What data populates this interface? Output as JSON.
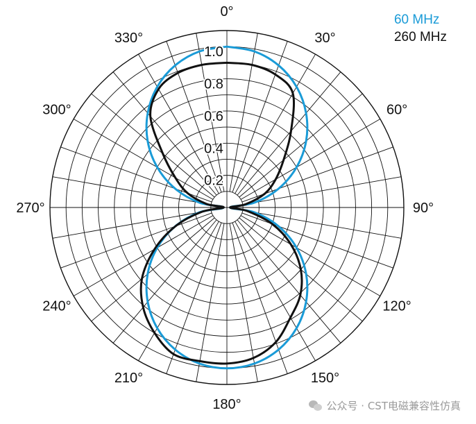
{
  "chart_data": {
    "type": "polar-line",
    "angular_unit": "degrees",
    "angular_direction": "clockwise",
    "zero_at": "top",
    "angle_labels": [
      "0°",
      "30°",
      "60°",
      "90°",
      "120°",
      "150°",
      "180°",
      "210°",
      "240°",
      "270°",
      "300°",
      "330°"
    ],
    "radial_ticks": [
      "0.2",
      "0.4",
      "0.6",
      "0.8",
      "1.0"
    ],
    "radial_range": [
      0,
      1.1
    ],
    "radial_grid_step": 0.1,
    "angular_grid_step_deg": 10,
    "legend_position": "top-right",
    "series": [
      {
        "name": "60 MHz",
        "color": "#1a9bd7",
        "points": [
          [
            0,
            1.0
          ],
          [
            10,
            0.985
          ],
          [
            20,
            0.94
          ],
          [
            30,
            0.866
          ],
          [
            40,
            0.766
          ],
          [
            50,
            0.643
          ],
          [
            60,
            0.5
          ],
          [
            70,
            0.342
          ],
          [
            80,
            0.174
          ],
          [
            90,
            0.02
          ],
          [
            100,
            0.174
          ],
          [
            110,
            0.342
          ],
          [
            120,
            0.5
          ],
          [
            130,
            0.643
          ],
          [
            140,
            0.766
          ],
          [
            150,
            0.866
          ],
          [
            160,
            0.94
          ],
          [
            170,
            0.985
          ],
          [
            180,
            1.0
          ],
          [
            190,
            0.985
          ],
          [
            200,
            0.94
          ],
          [
            210,
            0.866
          ],
          [
            220,
            0.766
          ],
          [
            230,
            0.643
          ],
          [
            240,
            0.5
          ],
          [
            250,
            0.342
          ],
          [
            260,
            0.174
          ],
          [
            270,
            0.02
          ],
          [
            280,
            0.174
          ],
          [
            290,
            0.342
          ],
          [
            300,
            0.5
          ],
          [
            310,
            0.643
          ],
          [
            320,
            0.766
          ],
          [
            330,
            0.866
          ],
          [
            340,
            0.94
          ],
          [
            350,
            0.985
          ],
          [
            360,
            1.0
          ]
        ]
      },
      {
        "name": "260 MHz",
        "color": "#111111",
        "points": [
          [
            0,
            0.9
          ],
          [
            10,
            0.9
          ],
          [
            20,
            0.88
          ],
          [
            30,
            0.82
          ],
          [
            40,
            0.62
          ],
          [
            50,
            0.46
          ],
          [
            60,
            0.35
          ],
          [
            70,
            0.25
          ],
          [
            80,
            0.12
          ],
          [
            90,
            0.02
          ],
          [
            100,
            0.13
          ],
          [
            110,
            0.3
          ],
          [
            120,
            0.46
          ],
          [
            130,
            0.6
          ],
          [
            140,
            0.71
          ],
          [
            150,
            0.79
          ],
          [
            160,
            0.89
          ],
          [
            170,
            0.95
          ],
          [
            180,
            0.97
          ],
          [
            190,
            0.97
          ],
          [
            200,
            0.97
          ],
          [
            210,
            0.9
          ],
          [
            220,
            0.81
          ],
          [
            230,
            0.69
          ],
          [
            240,
            0.52
          ],
          [
            250,
            0.34
          ],
          [
            260,
            0.16
          ],
          [
            270,
            0.02
          ],
          [
            280,
            0.13
          ],
          [
            290,
            0.26
          ],
          [
            300,
            0.37
          ],
          [
            310,
            0.52
          ],
          [
            320,
            0.74
          ],
          [
            330,
            0.85
          ],
          [
            340,
            0.89
          ],
          [
            350,
            0.9
          ],
          [
            360,
            0.9
          ]
        ]
      }
    ]
  },
  "watermark": {
    "text": "公众号 · CST电磁兼容性仿真",
    "icon": "wechat-icon"
  }
}
